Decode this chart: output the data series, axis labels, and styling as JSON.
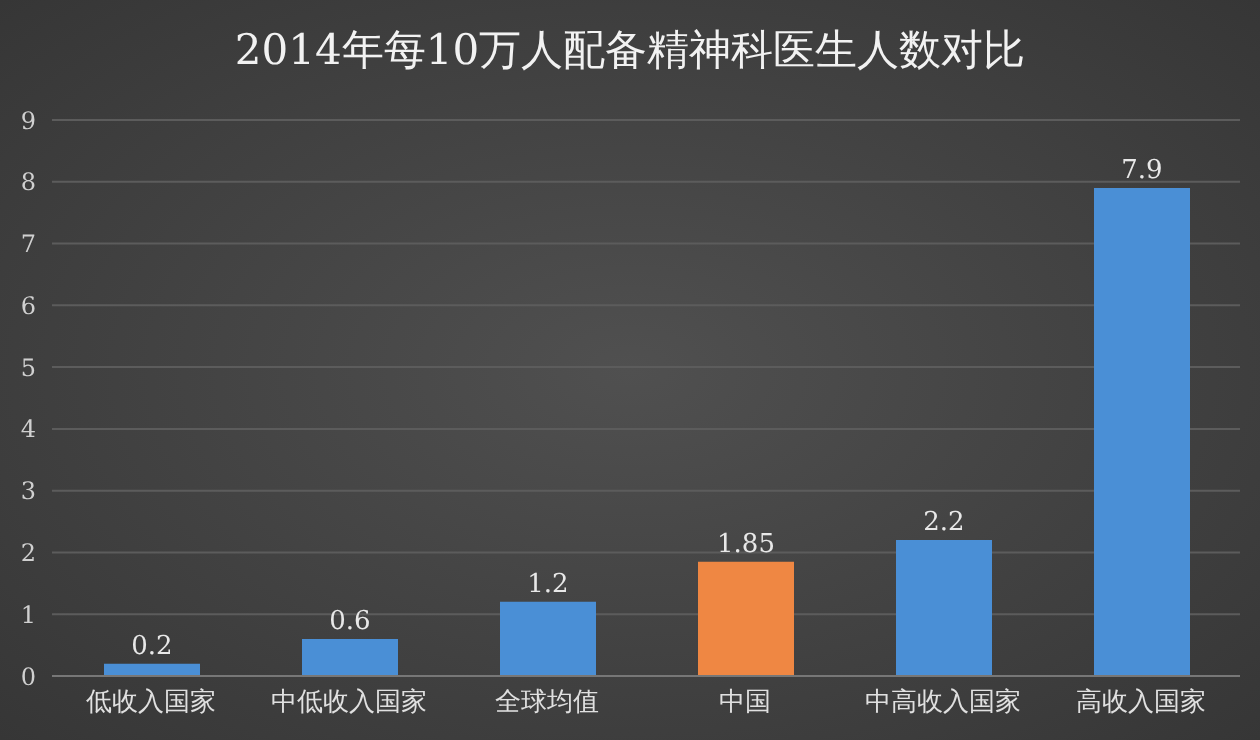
{
  "chart_data": {
    "type": "bar",
    "title": "2014年每10万人配备精神科医生人数对比",
    "categories": [
      "低收入国家",
      "中低收入国家",
      "全球均值",
      "中国",
      "中高收入国家",
      "高收入国家"
    ],
    "values": [
      0.2,
      0.6,
      1.2,
      1.85,
      2.2,
      7.9
    ],
    "colors": [
      "#4a8fd6",
      "#4a8fd6",
      "#4a8fd6",
      "#ef8743",
      "#4a8fd6",
      "#4a8fd6"
    ],
    "ylim": [
      0,
      9
    ],
    "yticks": [
      0,
      1,
      2,
      3,
      4,
      5,
      6,
      7,
      8,
      9
    ],
    "grid": "y",
    "data_labels": true
  }
}
